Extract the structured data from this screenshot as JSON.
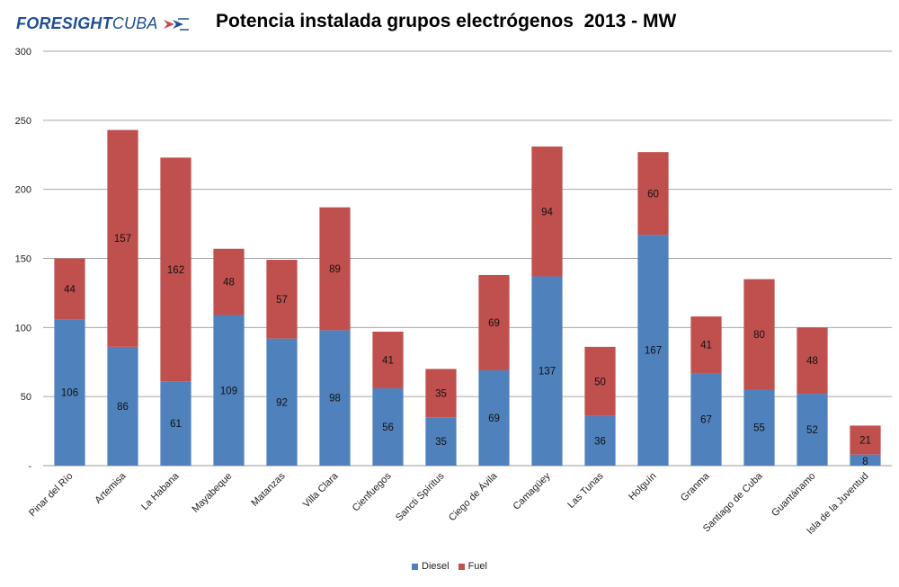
{
  "logo": {
    "part1": "FORESIGHT",
    "part2": "CUBA"
  },
  "chart_data": {
    "type": "bar",
    "stacked": true,
    "title": "Potencia instalada grupos electrógenos  2013 - MW",
    "xlabel": "",
    "ylabel": "",
    "ylim": [
      0,
      300
    ],
    "yticks": [
      0,
      50,
      100,
      150,
      200,
      250,
      300
    ],
    "ytick_labels": [
      "-",
      "50",
      "100",
      "150",
      "200",
      "250",
      "300"
    ],
    "grid": true,
    "legend_position": "bottom",
    "categories": [
      "Pinar del Río",
      "Artemisa",
      "La Habana",
      "Mayabeque",
      "Matanzas",
      "Villa Clara",
      "Cienfuegos",
      "Sancti Spíritus",
      "Ciego de Ávila",
      "Camagüey",
      "Las Tunas",
      "Holguín",
      "Granma",
      "Santiago de Cuba",
      "Guantánamo",
      "Isla de la Juventud"
    ],
    "series": [
      {
        "name": "Diesel",
        "color": "#4f81bd",
        "values": [
          106,
          86,
          61,
          109,
          92,
          98,
          56,
          35,
          69,
          137,
          36,
          167,
          67,
          55,
          52,
          8
        ]
      },
      {
        "name": "Fuel",
        "color": "#c0504d",
        "values": [
          44,
          157,
          162,
          48,
          57,
          89,
          41,
          35,
          69,
          94,
          50,
          60,
          41,
          80,
          48,
          21
        ]
      }
    ]
  }
}
